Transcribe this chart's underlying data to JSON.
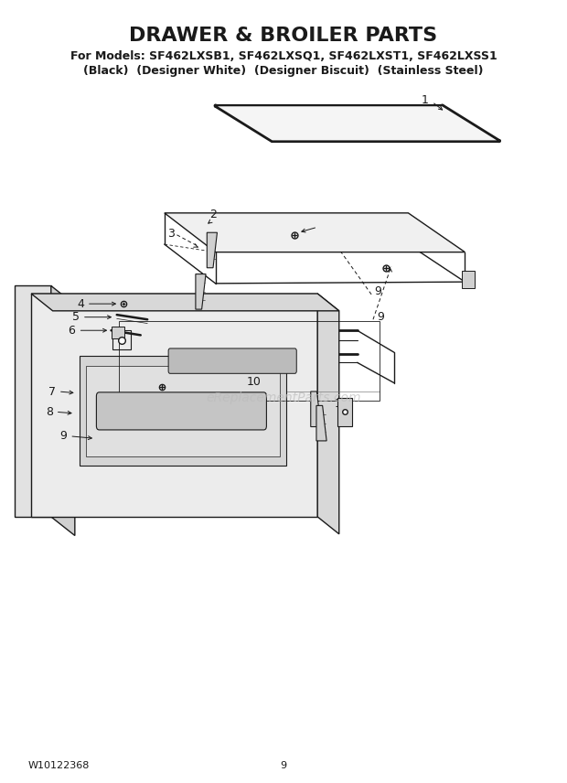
{
  "title": "DRAWER & BROILER PARTS",
  "subtitle_line1": "For Models: SF462LXSB1, SF462LXSQ1, SF462LXST1, SF462LXSS1",
  "subtitle_line2": "(Black)  (Designer White)  (Designer Biscuit)  (Stainless Steel)",
  "footer_left": "W10122368",
  "footer_center": "9",
  "bg_color": "#ffffff",
  "line_color": "#1a1a1a",
  "watermark_text": "eReplacementParts.com",
  "title_fontsize": 16,
  "subtitle_fontsize": 9,
  "label_fontsize": 9,
  "footer_fontsize": 8
}
